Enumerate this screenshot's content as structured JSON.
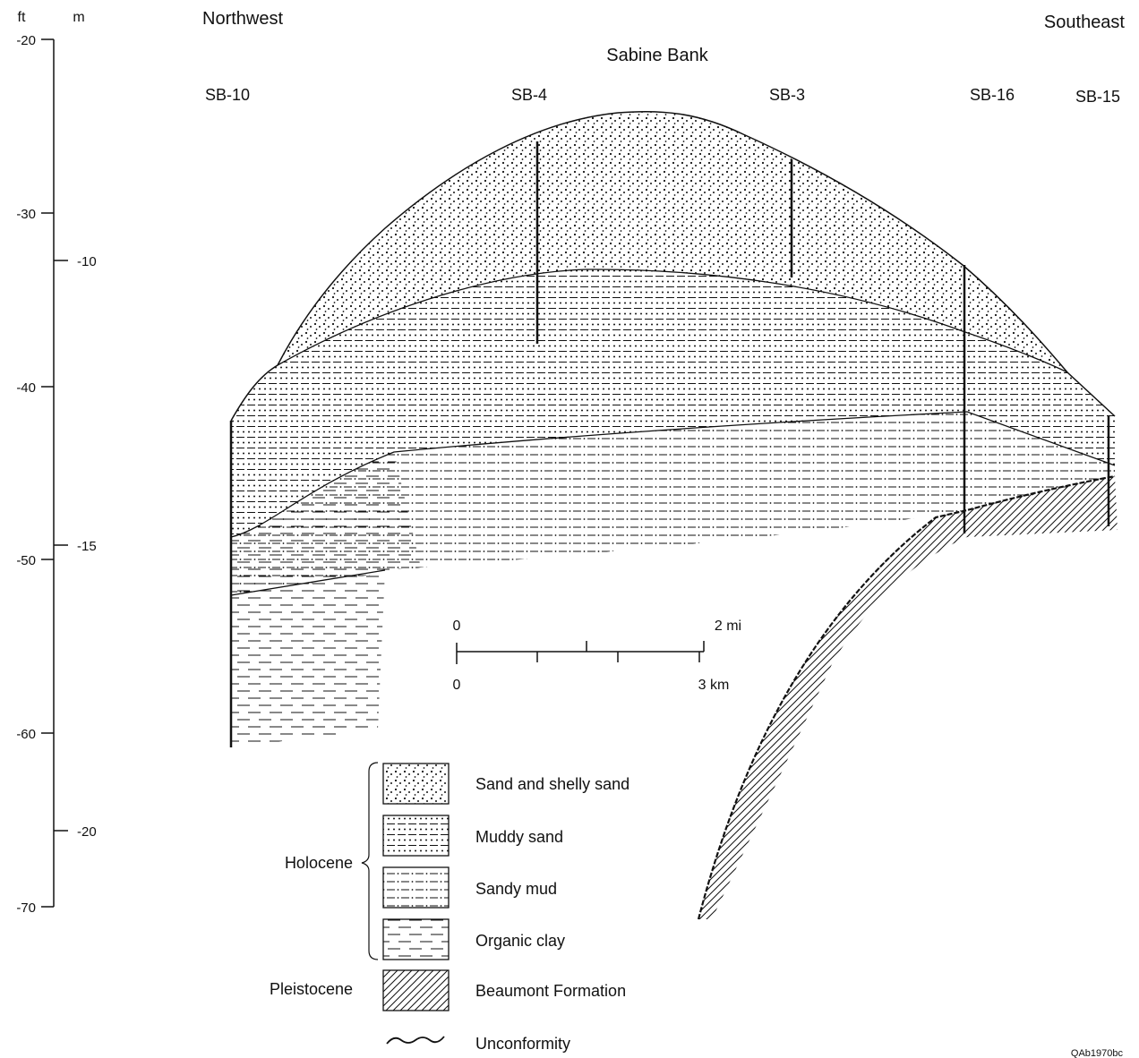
{
  "directions": {
    "left": "Northwest",
    "right": "Southeast"
  },
  "feature_title": "Sabine Bank",
  "wells": [
    "SB-10",
    "SB-4",
    "SB-3",
    "SB-16",
    "SB-15"
  ],
  "depth_axis": {
    "ft_label": "ft",
    "m_label": "m",
    "ft_ticks": [
      "-20",
      "-30",
      "-40",
      "-50",
      "-60",
      "-70"
    ],
    "m_ticks": [
      "-10",
      "-15",
      "-20"
    ]
  },
  "scale_bar": {
    "mi_start": "0",
    "mi_end": "2 mi",
    "km_start": "0",
    "km_end": "3 km"
  },
  "legend": {
    "holocene_label": "Holocene",
    "pleistocene_label": "Pleistocene",
    "items": [
      "Sand and shelly sand",
      "Muddy sand",
      "Sandy mud",
      "Organic clay",
      "Beaumont Formation",
      "Unconformity"
    ]
  },
  "figure_code": "QAb1970bc"
}
